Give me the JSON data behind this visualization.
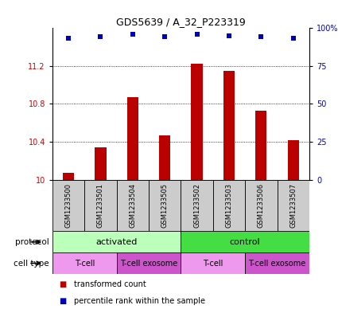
{
  "title": "GDS5639 / A_32_P223319",
  "samples": [
    "GSM1233500",
    "GSM1233501",
    "GSM1233504",
    "GSM1233505",
    "GSM1233502",
    "GSM1233503",
    "GSM1233506",
    "GSM1233507"
  ],
  "bar_values": [
    10.07,
    10.34,
    10.87,
    10.47,
    11.22,
    11.15,
    10.73,
    10.42
  ],
  "percentile_values": [
    93,
    94,
    96,
    94,
    96,
    95,
    94,
    93
  ],
  "ylim_left": [
    10.0,
    11.6
  ],
  "ylim_right": [
    0,
    100
  ],
  "yticks_left": [
    10.0,
    10.4,
    10.8,
    11.2
  ],
  "yticks_right": [
    0,
    25,
    50,
    75,
    100
  ],
  "yticklabels_left": [
    "10",
    "10.4",
    "10.8",
    "11.2"
  ],
  "yticklabels_right": [
    "0",
    "25",
    "50",
    "75",
    "100%"
  ],
  "bar_color": "#bb0000",
  "dot_color": "#0000bb",
  "grid_color": "#000000",
  "protocol_colors": [
    "#bbffbb",
    "#44dd44"
  ],
  "celltype_colors_alt": [
    "#ee99ee",
    "#cc55cc"
  ],
  "protocols": [
    [
      "activated",
      0,
      4
    ],
    [
      "control",
      4,
      8
    ]
  ],
  "celltypes": [
    [
      "T-cell",
      0,
      2
    ],
    [
      "T-cell exosome",
      2,
      4
    ],
    [
      "T-cell",
      4,
      6
    ],
    [
      "T-cell exosome",
      6,
      8
    ]
  ],
  "legend_bar_label": "transformed count",
  "legend_dot_label": "percentile rank within the sample",
  "protocol_label": "protocol",
  "celltype_label": "cell type",
  "tick_label_color_left": "#cc0000",
  "tick_label_color_right": "#0000cc",
  "sample_box_color": "#cccccc",
  "bar_width": 0.35
}
